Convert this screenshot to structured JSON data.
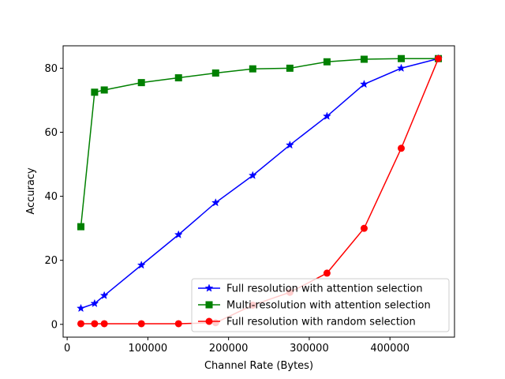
{
  "chart_data": {
    "type": "line",
    "title": "",
    "xlabel": "Channel Rate (Bytes)",
    "ylabel": "Accuracy",
    "xlim": [
      -5000,
      480000
    ],
    "ylim": [
      -4,
      87
    ],
    "xticks": [
      0,
      100000,
      200000,
      300000,
      400000
    ],
    "yticks": [
      0,
      20,
      40,
      60,
      80
    ],
    "grid": false,
    "legend_position": "lower-right",
    "series": [
      {
        "name": "Full resolution with attention selection",
        "color": "#0000ff",
        "marker": "star",
        "x": [
          17000,
          34000,
          46000,
          92000,
          138000,
          184000,
          230000,
          276000,
          322000,
          368000,
          414000,
          460000
        ],
        "y": [
          5,
          6.5,
          9,
          18.5,
          28,
          38,
          46.5,
          56,
          65,
          75,
          80,
          83
        ]
      },
      {
        "name": "Multi-resolution with attention selection",
        "color": "#008000",
        "marker": "square",
        "x": [
          17000,
          34000,
          46000,
          92000,
          138000,
          184000,
          230000,
          276000,
          322000,
          368000,
          414000,
          460000
        ],
        "y": [
          30.5,
          72.5,
          73.2,
          75.5,
          77,
          78.5,
          79.8,
          80,
          82,
          82.8,
          83,
          83
        ]
      },
      {
        "name": "Full resolution with random selection",
        "color": "#ff0000",
        "marker": "circle",
        "x": [
          17000,
          34000,
          46000,
          92000,
          138000,
          184000,
          230000,
          276000,
          322000,
          368000,
          414000,
          460000
        ],
        "y": [
          0.2,
          0.2,
          0.2,
          0.2,
          0.2,
          0.5,
          6,
          10,
          16,
          30,
          55,
          83
        ]
      }
    ]
  }
}
